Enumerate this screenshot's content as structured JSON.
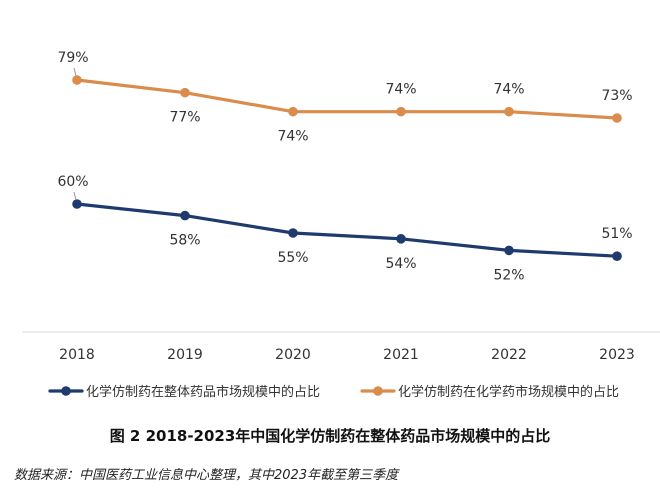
{
  "chart_data": {
    "type": "line",
    "categories": [
      "2018",
      "2019",
      "2020",
      "2021",
      "2022",
      "2023"
    ],
    "series": [
      {
        "name": "化学仿制药在整体药品市场规模中的占比",
        "color": "#1f3b6e",
        "values": [
          60,
          58,
          55,
          54,
          52,
          51
        ],
        "labels": [
          "60%",
          "58%",
          "55%",
          "54%",
          "52%",
          "51%"
        ]
      },
      {
        "name": "化学仿制药在化学药市场规模中的占比",
        "color": "#d98c4b",
        "values": [
          79,
          77,
          74,
          74,
          74,
          73
        ],
        "labels": [
          "79%",
          "77%",
          "74%",
          "74%",
          "74%",
          "73%"
        ]
      }
    ],
    "legend_position": "bottom",
    "grid": false
  },
  "caption": "图 2 2018-2023年中国化学仿制药在整体药品市场规模中的占比",
  "source": "数据来源：中国医药工业信息中心整理，其中2023年截至第三季度"
}
